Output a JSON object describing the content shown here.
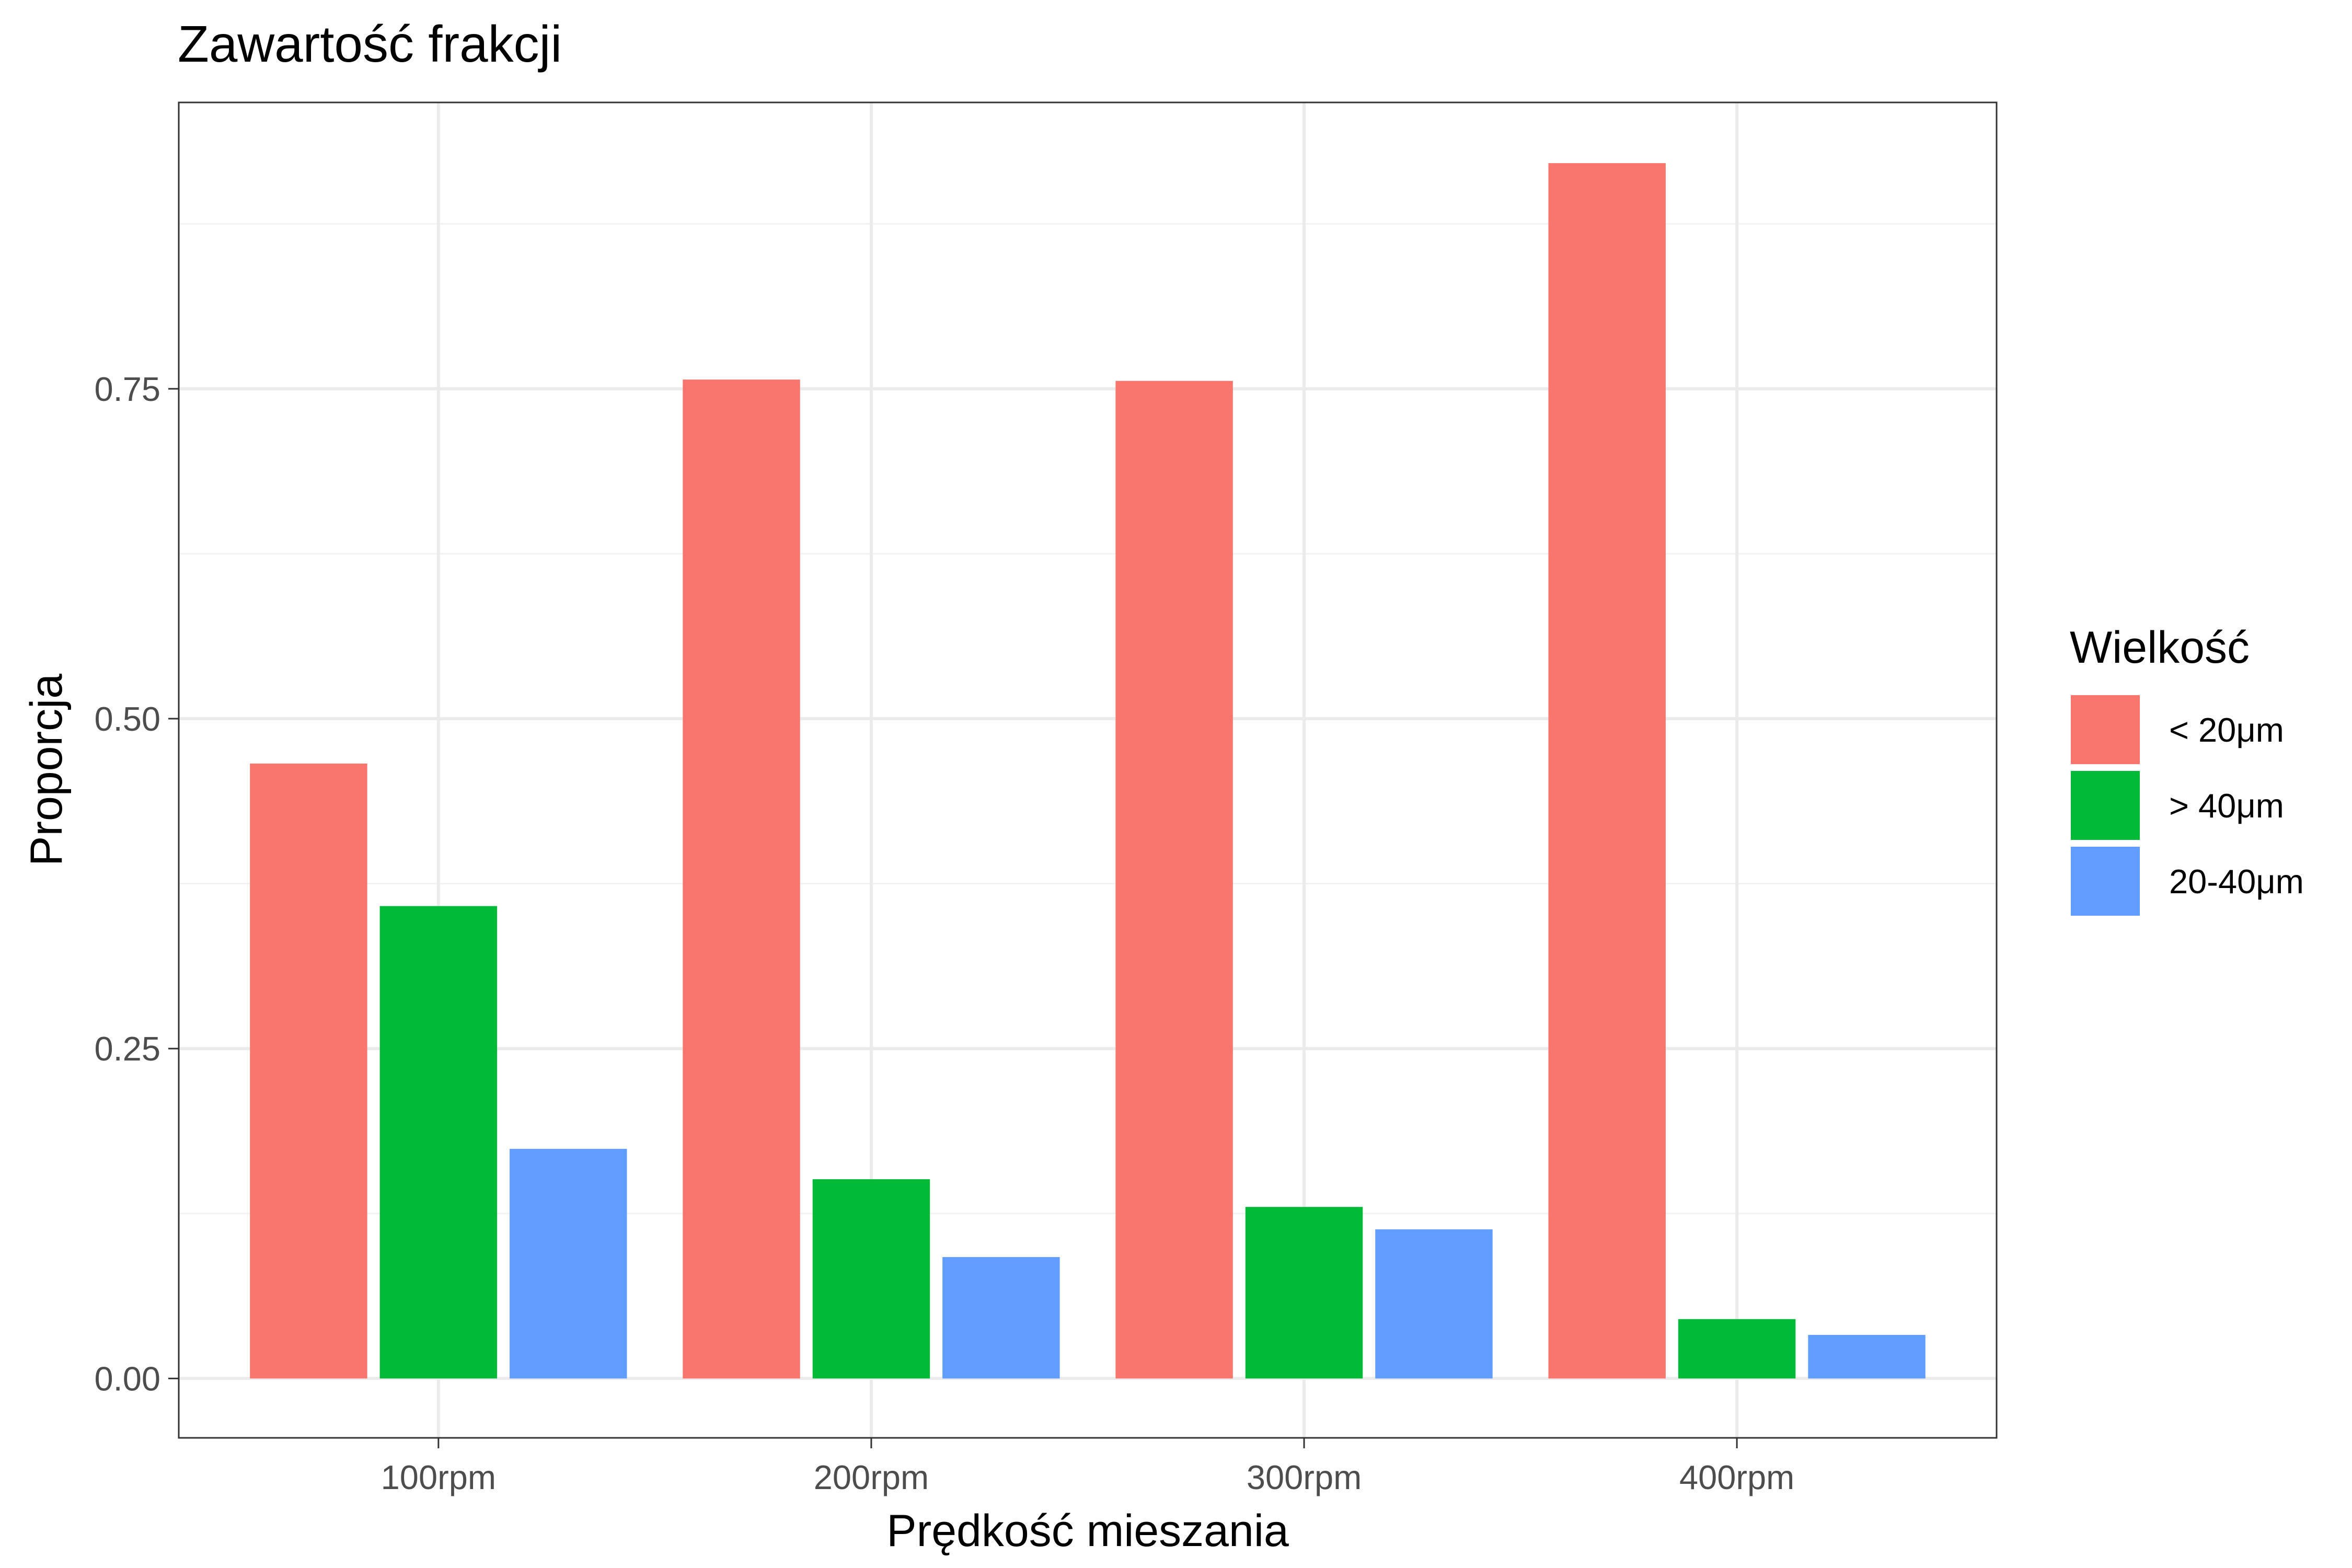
{
  "chart_data": {
    "type": "bar",
    "title": "Zawartość frakcji",
    "xlabel": "Prędkość mieszania",
    "ylabel": "Proporcja",
    "categories": [
      "100rpm",
      "200rpm",
      "300rpm",
      "400rpm"
    ],
    "series": [
      {
        "name": "< 20μm",
        "color": "#F8766D",
        "values": [
          0.466,
          0.757,
          0.756,
          0.921
        ]
      },
      {
        "name": "> 40μm",
        "color": "#00BA38",
        "values": [
          0.358,
          0.151,
          0.13,
          0.045
        ]
      },
      {
        "name": "20-40μm",
        "color": "#619CFF",
        "values": [
          0.174,
          0.092,
          0.113,
          0.033
        ]
      }
    ],
    "ylim": [
      -0.045,
      0.967
    ],
    "yticks": [
      0,
      0.25,
      0.5,
      0.75
    ],
    "ytick_labels": [
      "0.00",
      "0.25",
      "0.50",
      "0.75"
    ],
    "grid": true,
    "legend": {
      "title": "Wielkość",
      "position": "right"
    }
  }
}
